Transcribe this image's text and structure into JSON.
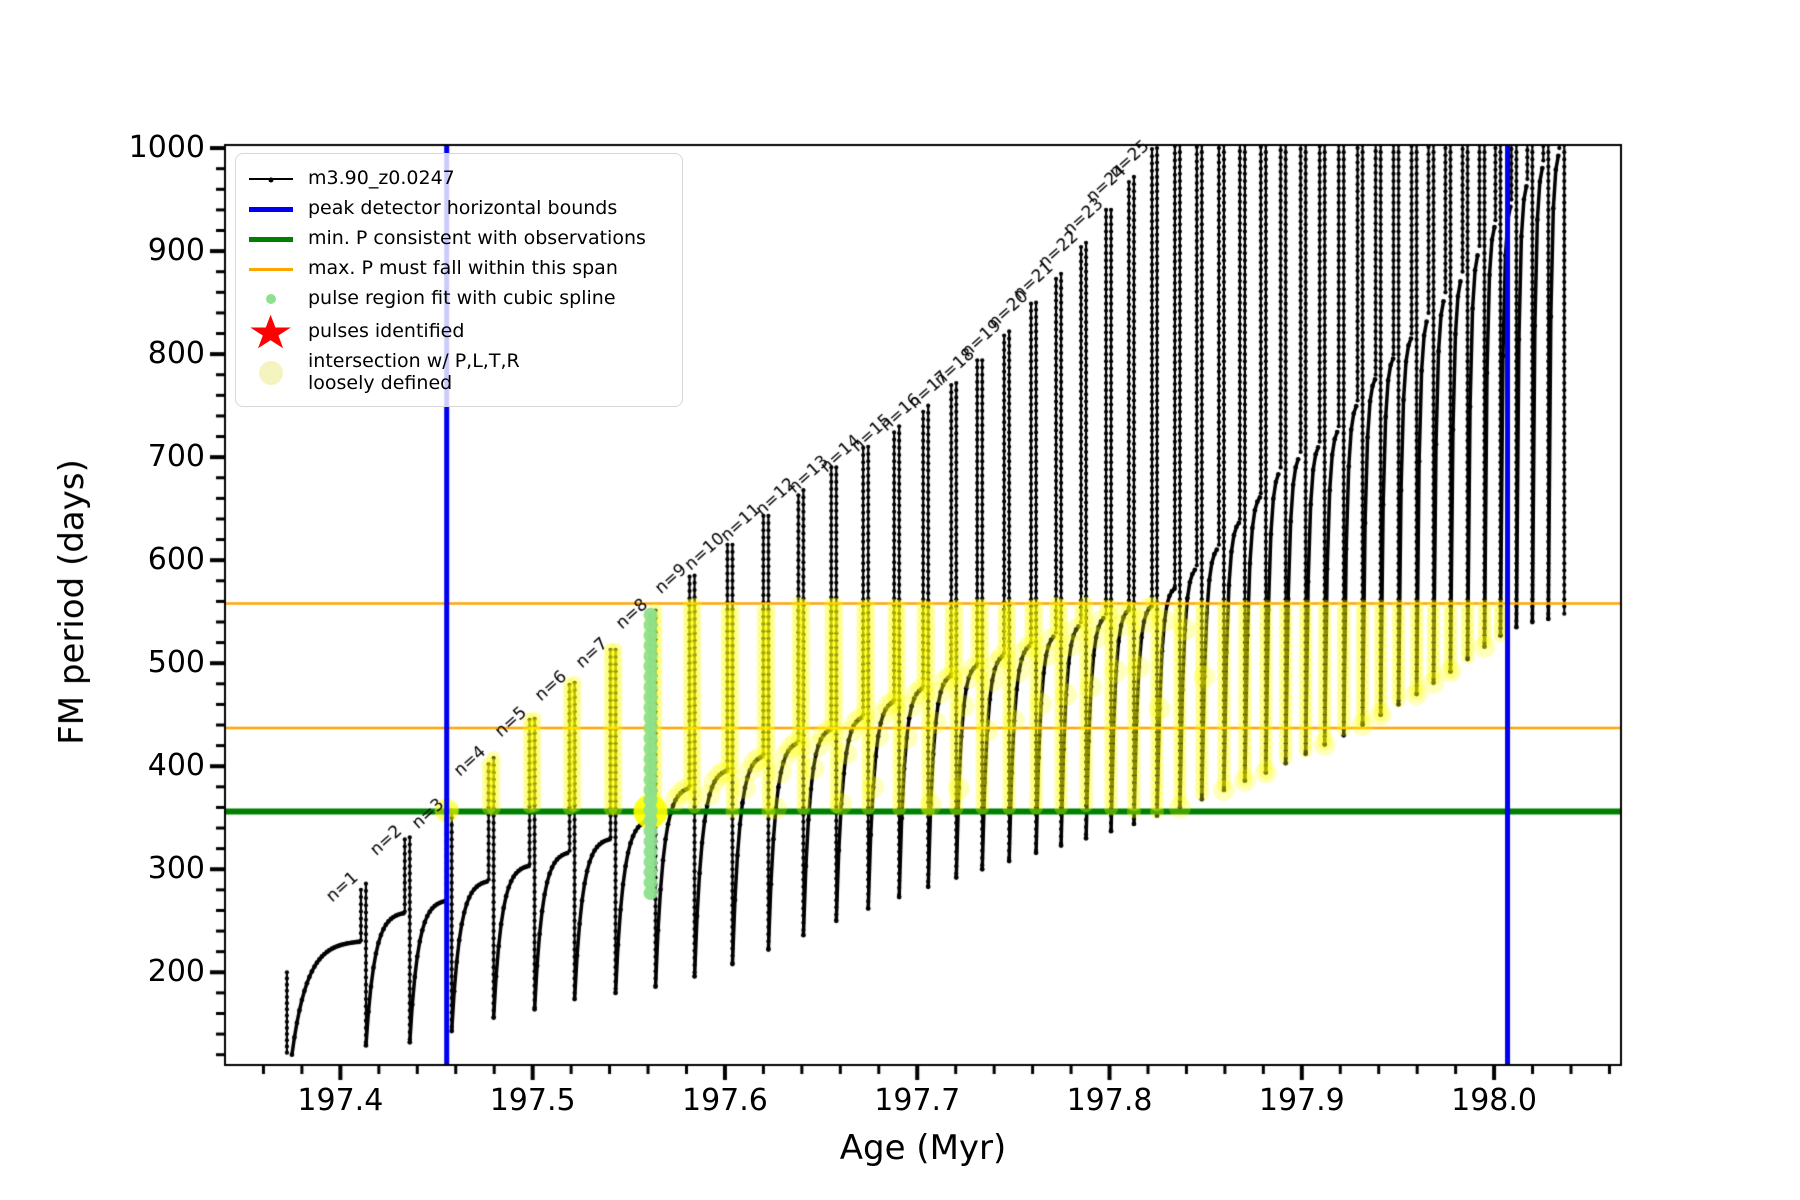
{
  "figure": {
    "background": "#ffffff"
  },
  "colors": {
    "series": "#000000",
    "peak_bounds_blue": "#0000ee",
    "min_p_green": "#008000",
    "max_p_orange": "#ffa500",
    "pulse_region_green": "#8de08d",
    "intersection_yellow": "#ffff00",
    "legend_yellow_pale": "#f4f4c0",
    "star_red": "#ff0000"
  },
  "legend": {
    "entries": [
      {
        "label": "m3.90_z0.0247",
        "swatch": "black-line-with-dot"
      },
      {
        "label": "peak detector horizontal bounds",
        "swatch": "blue-line"
      },
      {
        "label": "min. P consistent with observations",
        "swatch": "green-line"
      },
      {
        "label": "max. P must fall within this span",
        "swatch": "orange-line"
      },
      {
        "label": "pulse region fit with cubic spline",
        "swatch": "green-dot"
      },
      {
        "label": "pulses identified",
        "swatch": "red-star"
      },
      {
        "label": "intersection w/ P,L,T,R\nloosely defined",
        "swatch": "yellow-dot"
      }
    ],
    "star_glyph": "★"
  },
  "x_axis": {
    "label": "Age (Myr)",
    "tick_values": [
      197.4,
      197.5,
      197.6,
      197.7,
      197.8,
      197.9,
      198.0
    ],
    "tick_labels": [
      "197.4",
      "197.5",
      "197.6",
      "197.7",
      "197.8",
      "197.9",
      "198.0"
    ],
    "minor_step": 0.02
  },
  "y_axis": {
    "label": "FM period (days)",
    "tick_values": [
      200,
      300,
      400,
      500,
      600,
      700,
      800,
      900,
      1000
    ],
    "tick_labels": [
      "200",
      "300",
      "400",
      "500",
      "600",
      "700",
      "800",
      "900",
      "1000"
    ],
    "minor_step": 20
  },
  "chart_data": {
    "type": "line",
    "title": "",
    "xlabel": "Age (Myr)",
    "ylabel": "FM period (days)",
    "xlim": [
      197.34,
      198.066
    ],
    "ylim": [
      110,
      1003
    ],
    "series_name": "m3.90_z0.0247",
    "series_start": {
      "age": 197.3722,
      "period": 200
    },
    "pulses": {
      "trough_initial": 120,
      "labels": [
        "n=1",
        "n=2",
        "n=3",
        "n=4",
        "n=5",
        "n=6",
        "n=7",
        "n=8",
        "n=9",
        "n=10",
        "n=11",
        "n=12",
        "n=13",
        "n=14",
        "n=15",
        "n=16",
        "n=17",
        "n=18",
        "n=19",
        "n=20",
        "n=21",
        "n=22",
        "n=23",
        "n=24",
        "n=25"
      ],
      "age": [
        197.4107,
        197.4335,
        197.4553,
        197.4771,
        197.4984,
        197.5192,
        197.5405,
        197.5613,
        197.5816,
        197.6013,
        197.62,
        197.6382,
        197.6553,
        197.6719,
        197.688,
        197.7031,
        197.7177,
        197.7312,
        197.7452,
        197.7592,
        197.7722,
        197.7852,
        197.7982,
        197.8101,
        197.8221,
        197.834,
        197.8454,
        197.8569,
        197.8678,
        197.8787,
        197.889,
        197.8994,
        197.9093,
        197.9192,
        197.929,
        197.9384,
        197.9477,
        197.9571,
        197.9659,
        197.9747,
        197.9836,
        197.9924,
        198.0007,
        198.009,
        198.0173,
        198.0256,
        198.0339
      ],
      "peak": [
        286,
        331,
        357,
        408,
        446,
        481,
        513,
        551,
        585,
        615,
        643,
        668,
        690,
        710,
        730,
        750,
        772,
        794,
        822,
        850,
        878,
        908,
        940,
        972,
        1000,
        1015,
        1015,
        1015,
        1015,
        1015,
        1015,
        1015,
        1015,
        1015,
        1015,
        1015,
        1015,
        1015,
        1015,
        1015,
        1015,
        1015,
        1015,
        1015,
        1015,
        1015,
        1015
      ],
      "shoulder": [
        231,
        259,
        271,
        290,
        305,
        318,
        331,
        350,
        381,
        398,
        412,
        425,
        438,
        450,
        465,
        478,
        490,
        500,
        510,
        520,
        530,
        540,
        548,
        554,
        558,
        575,
        595,
        615,
        640,
        665,
        690,
        705,
        715,
        730,
        755,
        780,
        800,
        820,
        840,
        860,
        880,
        905,
        930,
        950,
        970,
        988,
        1000
      ],
      "trough_after": [
        129,
        132,
        143,
        156,
        164,
        174,
        180,
        186,
        196,
        208,
        222,
        236,
        250,
        262,
        273,
        283,
        292,
        300,
        308,
        316,
        323,
        330,
        337,
        344,
        352,
        360,
        368,
        377,
        386,
        394,
        403,
        412,
        421,
        430,
        440,
        450,
        460,
        470,
        481,
        492,
        504,
        516,
        527,
        535,
        540,
        543,
        545
      ]
    },
    "reference_lines": {
      "peak_detector_bounds_age": [
        197.4553,
        198.007
      ],
      "min_P": 356,
      "max_P_span": [
        437,
        558
      ]
    },
    "pulse_region_fit": {
      "pulse_label": "n=8",
      "age": 197.5613,
      "period_range": [
        277,
        551
      ]
    },
    "pulses_identified": [],
    "intersection_band": {
      "period_range": [
        356,
        558
      ],
      "age_range": [
        197.4553,
        198.007
      ]
    },
    "highlight_blobs": [
      {
        "age": 197.5613,
        "period": 356,
        "radius": 17,
        "alpha": 0.9
      },
      {
        "age": 197.4553,
        "period": 357,
        "radius": 12,
        "alpha": 0.5
      }
    ],
    "legend_position": "upper left",
    "grid": false
  }
}
